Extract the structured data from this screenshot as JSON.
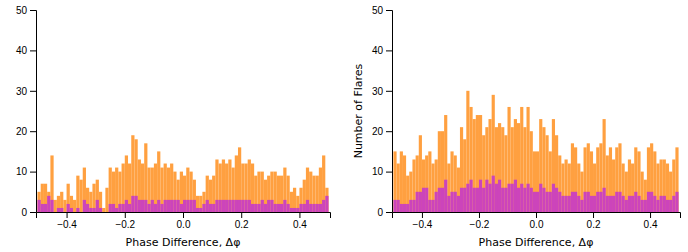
{
  "chart_data": [
    {
      "type": "histogram",
      "xlabel": "Phase Difference, Δφ",
      "xlim": [
        -0.505,
        0.505
      ],
      "ylim": [
        0,
        50
      ],
      "xticks": [
        {
          "value": -0.4,
          "label": "−0.4"
        },
        {
          "value": -0.2,
          "label": "−0.2"
        },
        {
          "value": 0,
          "label": "0.0"
        },
        0.2,
        0.4
      ],
      "yticks": [
        0,
        10,
        20,
        30,
        40,
        50
      ],
      "stacked": false,
      "bins": [
        -0.5,
        -0.4888888889,
        -0.4777777778,
        -0.4666666667,
        -0.4555555556,
        -0.4444444444,
        -0.4333333333,
        -0.4222222222,
        -0.4111111111,
        -0.4,
        -0.3888888889,
        -0.3777777778,
        -0.3666666667,
        -0.3555555556,
        -0.3444444444,
        -0.3333333333,
        -0.3222222222,
        -0.3111111111,
        -0.3,
        -0.2888888889,
        -0.2777777778,
        -0.2666666667,
        -0.2555555556,
        -0.2444444444,
        -0.2333333333,
        -0.2222222222,
        -0.2111111111,
        -0.2,
        -0.1888888889,
        -0.1777777778,
        -0.1666666667,
        -0.1555555556,
        -0.1444444444,
        -0.1333333333,
        -0.1222222222,
        -0.1111111111,
        -0.1,
        -0.0888888889,
        -0.0777777778,
        -0.0666666667,
        -0.0555555556,
        -0.0444444444,
        -0.0333333333,
        -0.0222222222,
        -0.0111111111,
        0,
        0.0111111111,
        0.0222222222,
        0.0333333333,
        0.0444444444,
        0.0555555556,
        0.0666666667,
        0.0777777778,
        0.0888888889,
        0.1,
        0.1111111111,
        0.1222222222,
        0.1333333333,
        0.1444444444,
        0.1555555556,
        0.1666666667,
        0.1777777778,
        0.1888888889,
        0.2,
        0.2111111111,
        0.2222222222,
        0.2333333333,
        0.2444444444,
        0.2555555556,
        0.2666666667,
        0.2777777778,
        0.2888888889,
        0.3,
        0.3111111111,
        0.3222222222,
        0.3333333333,
        0.3444444444,
        0.3555555556,
        0.3666666667,
        0.3777777778,
        0.3888888889,
        0.4,
        0.4111111111,
        0.4222222222,
        0.4333333333,
        0.4444444444,
        0.4555555556,
        0.4666666667,
        0.4777777778,
        0.4888888889,
        0.5
      ],
      "series": [
        {
          "color": "#FFA040",
          "values": [
            5,
            7,
            7,
            5,
            14,
            3,
            4,
            5,
            3,
            7,
            4,
            3,
            9,
            8,
            11,
            6,
            5,
            7,
            8,
            5,
            1,
            6,
            11,
            10,
            11,
            10,
            12,
            14,
            12,
            19,
            18,
            13,
            12,
            17,
            11,
            11,
            12,
            15,
            11,
            12,
            11,
            12,
            10,
            8,
            10,
            9,
            11,
            10,
            8,
            4,
            4,
            5,
            9,
            8,
            9,
            13,
            12,
            13,
            12,
            13,
            11,
            14,
            16,
            12,
            12,
            13,
            12,
            9,
            10,
            10,
            8,
            9,
            10,
            10,
            9,
            9,
            11,
            9,
            5,
            6,
            4,
            6,
            8,
            11,
            10,
            9,
            9,
            11,
            14,
            6
          ]
        },
        {
          "color": "#CC44BB",
          "values": [
            3,
            2,
            2,
            4,
            3,
            0,
            1,
            1,
            0,
            2,
            1,
            0,
            1,
            0,
            3,
            2,
            1,
            1,
            3,
            1,
            0,
            0,
            2,
            2,
            1,
            2,
            2,
            3,
            2,
            4,
            4,
            3,
            3,
            3,
            2,
            3,
            2,
            3,
            2,
            3,
            3,
            3,
            3,
            3,
            2,
            3,
            3,
            3,
            3,
            1,
            1,
            2,
            3,
            2,
            2,
            3,
            3,
            3,
            3,
            3,
            3,
            3,
            3,
            3,
            3,
            3,
            2,
            2,
            2,
            3,
            2,
            3,
            3,
            2,
            2,
            2,
            3,
            2,
            1,
            1,
            1,
            2,
            2,
            3,
            2,
            2,
            2,
            2,
            3,
            4
          ]
        }
      ]
    },
    {
      "type": "histogram",
      "xlabel": "Phase Difference, Δφ",
      "ylabel": "Number of Flares",
      "xlim": [
        -0.505,
        0.505
      ],
      "ylim": [
        0,
        50
      ],
      "xticks": [
        {
          "value": -0.4,
          "label": "−0.4"
        },
        {
          "value": -0.2,
          "label": "−0.2"
        },
        {
          "value": 0,
          "label": "0.0"
        },
        0.2,
        0.4
      ],
      "yticks": [
        0,
        10,
        20,
        30,
        40,
        50
      ],
      "stacked": false,
      "bins": [
        -0.5,
        -0.4888888889,
        -0.4777777778,
        -0.4666666667,
        -0.4555555556,
        -0.4444444444,
        -0.4333333333,
        -0.4222222222,
        -0.4111111111,
        -0.4,
        -0.3888888889,
        -0.3777777778,
        -0.3666666667,
        -0.3555555556,
        -0.3444444444,
        -0.3333333333,
        -0.3222222222,
        -0.3111111111,
        -0.3,
        -0.2888888889,
        -0.2777777778,
        -0.2666666667,
        -0.2555555556,
        -0.2444444444,
        -0.2333333333,
        -0.2222222222,
        -0.2111111111,
        -0.2,
        -0.1888888889,
        -0.1777777778,
        -0.1666666667,
        -0.1555555556,
        -0.1444444444,
        -0.1333333333,
        -0.1222222222,
        -0.1111111111,
        -0.1,
        -0.0888888889,
        -0.0777777778,
        -0.0666666667,
        -0.0555555556,
        -0.0444444444,
        -0.0333333333,
        -0.0222222222,
        -0.0111111111,
        0,
        0.0111111111,
        0.0222222222,
        0.0333333333,
        0.0444444444,
        0.0555555556,
        0.0666666667,
        0.0777777778,
        0.0888888889,
        0.1,
        0.1111111111,
        0.1222222222,
        0.1333333333,
        0.1444444444,
        0.1555555556,
        0.1666666667,
        0.1777777778,
        0.1888888889,
        0.2,
        0.2111111111,
        0.2222222222,
        0.2333333333,
        0.2444444444,
        0.2555555556,
        0.2666666667,
        0.2777777778,
        0.2888888889,
        0.3,
        0.3111111111,
        0.3222222222,
        0.3333333333,
        0.3444444444,
        0.3555555556,
        0.3666666667,
        0.3777777778,
        0.3888888889,
        0.4,
        0.4111111111,
        0.4222222222,
        0.4333333333,
        0.4444444444,
        0.4555555556,
        0.4666666667,
        0.4777777778,
        0.4888888889,
        0.5
      ],
      "series": [
        {
          "color": "#FFA040",
          "values": [
            15,
            12,
            15,
            14,
            9,
            10,
            13,
            14,
            19,
            13,
            14,
            15,
            12,
            13,
            20,
            20,
            24,
            12,
            15,
            14,
            11,
            21,
            18,
            30,
            26,
            23,
            24,
            24,
            19,
            21,
            23,
            29,
            21,
            22,
            21,
            19,
            26,
            21,
            23,
            22,
            26,
            21,
            26,
            20,
            15,
            15,
            23,
            21,
            19,
            15,
            23,
            19,
            14,
            12,
            13,
            12,
            17,
            16,
            12,
            10,
            16,
            17,
            15,
            12,
            16,
            17,
            23,
            14,
            16,
            13,
            16,
            17,
            12,
            10,
            13,
            12,
            16,
            15,
            10,
            8,
            16,
            17,
            15,
            12,
            13,
            13,
            12,
            10,
            13,
            16
          ]
        },
        {
          "color": "#CC44BB",
          "values": [
            3,
            3,
            2,
            2,
            2,
            3,
            3,
            5,
            5,
            6,
            6,
            3,
            3,
            5,
            6,
            6,
            8,
            4,
            5,
            5,
            4,
            6,
            6,
            7,
            8,
            6,
            6,
            8,
            6,
            8,
            7,
            9,
            7,
            8,
            6,
            6,
            7,
            7,
            8,
            6,
            7,
            6,
            7,
            6,
            5,
            5,
            7,
            6,
            5,
            5,
            7,
            6,
            5,
            4,
            4,
            4,
            5,
            5,
            4,
            3,
            5,
            5,
            4,
            4,
            5,
            5,
            6,
            4,
            4,
            4,
            5,
            5,
            4,
            3,
            4,
            4,
            5,
            4,
            3,
            3,
            5,
            5,
            4,
            3,
            4,
            4,
            3,
            3,
            4,
            5
          ]
        }
      ]
    }
  ]
}
